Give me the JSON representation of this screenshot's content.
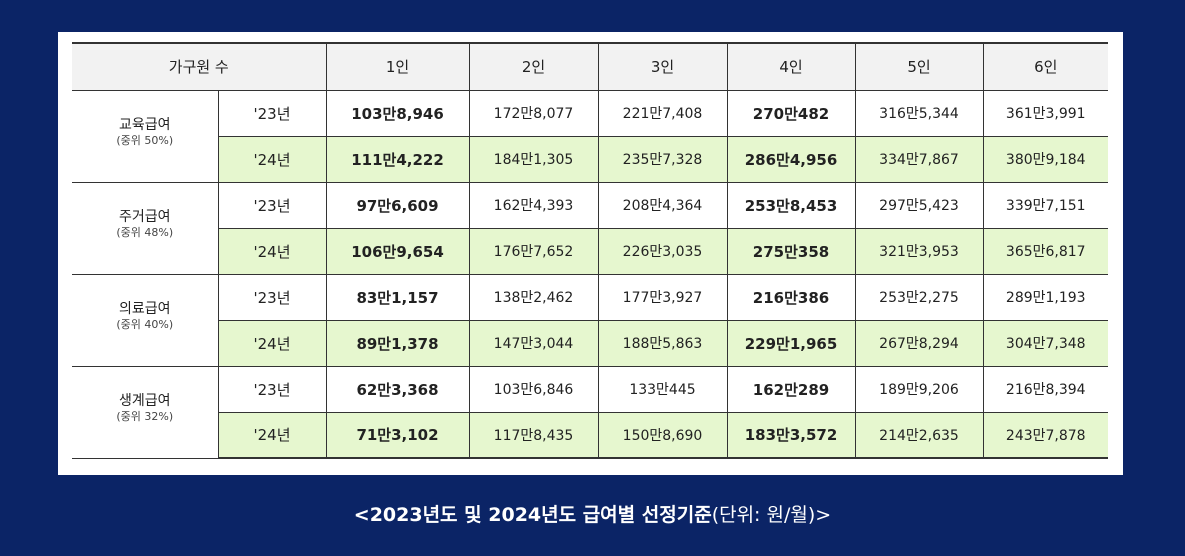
{
  "table": {
    "header": [
      "가구원 수",
      "1인",
      "2인",
      "3인",
      "4인",
      "5인",
      "6인"
    ],
    "groups": [
      {
        "name": "교육급여",
        "sub": "(중위 50%)",
        "rows": [
          {
            "year": "'23년",
            "values": [
              "103만8,946",
              "172만8,077",
              "221만7,408",
              "270만482",
              "316만5,344",
              "361만3,991"
            ]
          },
          {
            "year": "'24년",
            "values": [
              "111만4,222",
              "184만1,305",
              "235만7,328",
              "286만4,956",
              "334만7,867",
              "380만9,184"
            ]
          }
        ]
      },
      {
        "name": "주거급여",
        "sub": "(중위 48%)",
        "rows": [
          {
            "year": "'23년",
            "values": [
              "97만6,609",
              "162만4,393",
              "208만4,364",
              "253만8,453",
              "297만5,423",
              "339만7,151"
            ]
          },
          {
            "year": "'24년",
            "values": [
              "106만9,654",
              "176만7,652",
              "226만3,035",
              "275만358",
              "321만3,953",
              "365만6,817"
            ]
          }
        ]
      },
      {
        "name": "의료급여",
        "sub": "(중위 40%)",
        "rows": [
          {
            "year": "'23년",
            "values": [
              "83만1,157",
              "138만2,462",
              "177만3,927",
              "216만386",
              "253만2,275",
              "289만1,193"
            ]
          },
          {
            "year": "'24년",
            "values": [
              "89만1,378",
              "147만3,044",
              "188만5,863",
              "229만1,965",
              "267만8,294",
              "304만7,348"
            ]
          }
        ]
      },
      {
        "name": "생계급여",
        "sub": "(중위 32%)",
        "rows": [
          {
            "year": "'23년",
            "values": [
              "62만3,368",
              "103만6,846",
              "133만445",
              "162만289",
              "189만9,206",
              "216만8,394"
            ]
          },
          {
            "year": "'24년",
            "values": [
              "71만3,102",
              "117만8,435",
              "150만8,690",
              "183만3,572",
              "214만2,635",
              "243만7,878"
            ]
          }
        ]
      }
    ],
    "highlight_color": "#e6f7cf"
  },
  "caption": {
    "main": "<2023년도 및 2024년도 급여별 선정기준",
    "unit": "(단위: 원/월)>"
  }
}
